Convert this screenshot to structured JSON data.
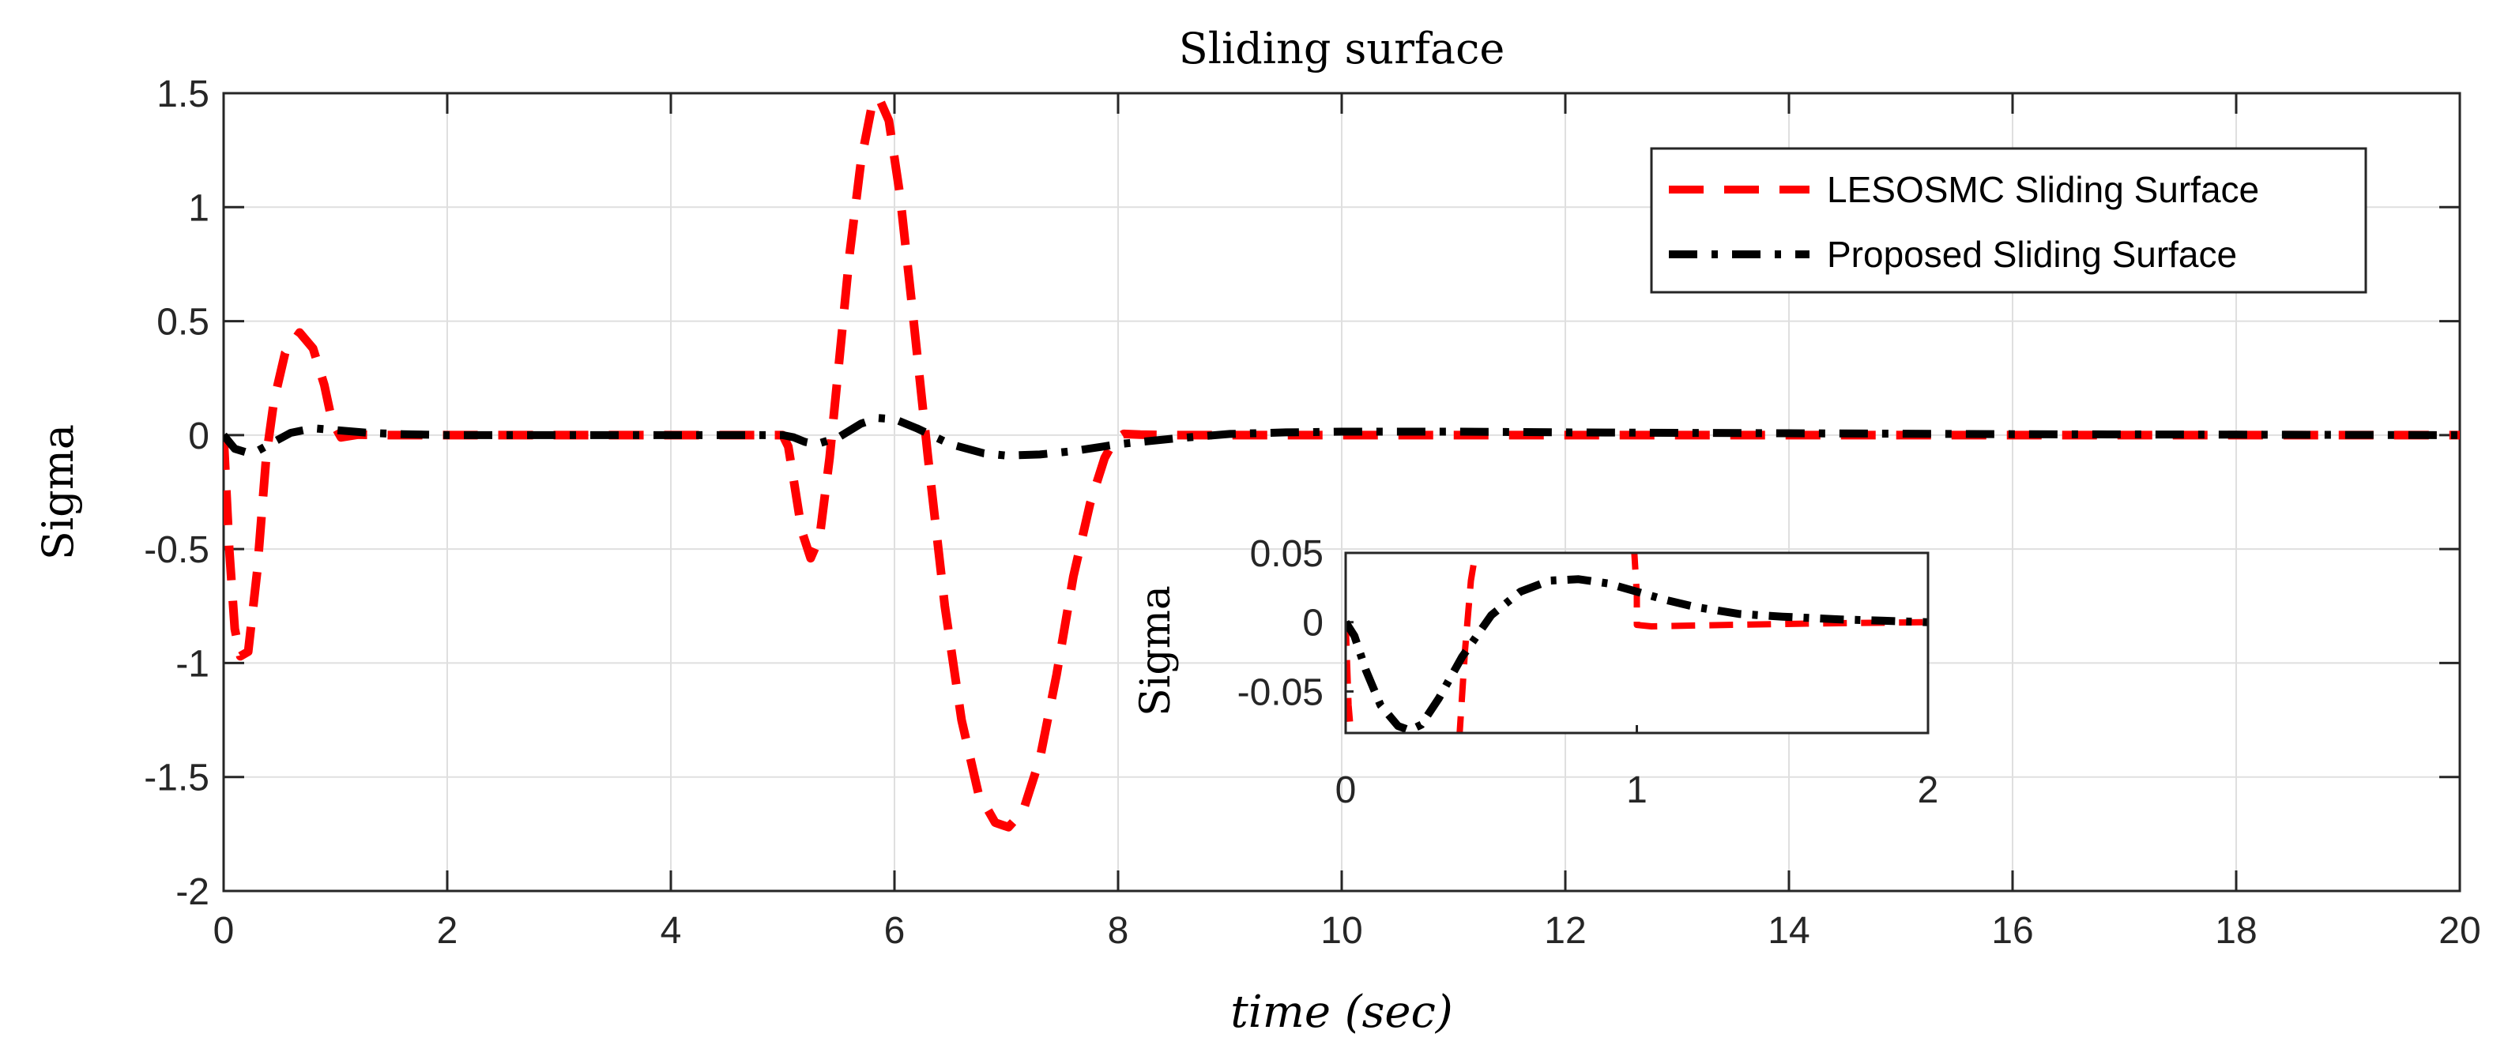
{
  "chart_data": [
    {
      "id": "main",
      "type": "line",
      "title": "Sliding surface",
      "xlabel": "time (sec)",
      "ylabel": "Sigma",
      "xlim": [
        0,
        20
      ],
      "ylim": [
        -2,
        1.5
      ],
      "xticks": [
        0,
        2,
        4,
        6,
        8,
        10,
        12,
        14,
        16,
        18,
        20
      ],
      "xtick_labels": [
        "0",
        "2",
        "4",
        "6",
        "8",
        "10",
        "12",
        "14",
        "16",
        "18",
        "20"
      ],
      "yticks": [
        -2,
        -1.5,
        -1,
        -0.5,
        0,
        0.5,
        1,
        1.5
      ],
      "ytick_labels": [
        "-2",
        "-1.5",
        "-1",
        "-0.5",
        "0",
        "0.5",
        "1",
        "1.5"
      ],
      "grid": true,
      "legend_position": "top-right",
      "series": [
        {
          "name": "LESOSMC Sliding Surface",
          "color": "#ff0000",
          "style": "dashed",
          "x": [
            0,
            0.05,
            0.1,
            0.15,
            0.22,
            0.3,
            0.38,
            0.45,
            0.55,
            0.68,
            0.8,
            0.9,
            0.97,
            1.05,
            1.2,
            1.5,
            2,
            3,
            4,
            5,
            5.05,
            5.1,
            5.17,
            5.25,
            5.33,
            5.42,
            5.5,
            5.6,
            5.7,
            5.8,
            5.86,
            5.95,
            6.05,
            6.15,
            6.3,
            6.45,
            6.6,
            6.75,
            6.9,
            7.02,
            7.15,
            7.3,
            7.45,
            7.6,
            7.75,
            7.88,
            7.97,
            8.05,
            8.2,
            8.5,
            9,
            10,
            12,
            14,
            16,
            18,
            20
          ],
          "y": [
            0,
            -0.5,
            -0.85,
            -0.97,
            -0.95,
            -0.6,
            -0.1,
            0.15,
            0.36,
            0.45,
            0.38,
            0.22,
            0.06,
            -0.01,
            0.002,
            0,
            0,
            0,
            0,
            0,
            -0.05,
            -0.2,
            -0.42,
            -0.54,
            -0.45,
            -0.1,
            0.3,
            0.8,
            1.2,
            1.45,
            1.48,
            1.38,
            1.05,
            0.6,
            -0.1,
            -0.75,
            -1.25,
            -1.57,
            -1.7,
            -1.72,
            -1.65,
            -1.42,
            -1.05,
            -0.62,
            -0.3,
            -0.1,
            -0.02,
            0.005,
            0.002,
            0,
            0,
            0,
            0,
            0,
            0,
            0,
            0
          ]
        },
        {
          "name": "Proposed Sliding Surface",
          "color": "#000000",
          "style": "dashdot",
          "x": [
            0,
            0.1,
            0.22,
            0.3,
            0.45,
            0.6,
            0.8,
            1,
            1.3,
            1.6,
            2,
            3,
            4,
            5,
            5.1,
            5.2,
            5.3,
            5.5,
            5.7,
            5.85,
            6,
            6.2,
            6.5,
            6.8,
            7,
            7.3,
            7.6,
            8,
            8.5,
            9,
            9.5,
            10,
            11,
            12,
            13,
            14,
            16,
            18,
            20
          ],
          "y": [
            0,
            -0.06,
            -0.078,
            -0.07,
            -0.03,
            0.01,
            0.03,
            0.022,
            0.01,
            0.004,
            0,
            0,
            0,
            0,
            -0.01,
            -0.03,
            -0.04,
            -0.01,
            0.05,
            0.075,
            0.07,
            0.03,
            -0.04,
            -0.08,
            -0.09,
            -0.085,
            -0.07,
            -0.04,
            -0.015,
            0.005,
            0.012,
            0.015,
            0.015,
            0.012,
            0.01,
            0.008,
            0.004,
            0.002,
            0
          ]
        }
      ]
    },
    {
      "id": "inset",
      "type": "line",
      "title": "",
      "xlabel": "",
      "ylabel": "Sigma",
      "xlim": [
        0,
        2
      ],
      "ylim": [
        -0.08,
        0.05
      ],
      "xticks": [
        0,
        1,
        2
      ],
      "xtick_labels": [
        "0",
        "1",
        "2"
      ],
      "yticks": [
        -0.05,
        0,
        0.05
      ],
      "ytick_labels": [
        "-0.05",
        "0",
        "0.05"
      ],
      "grid": false,
      "series": [
        {
          "name": "LESOSMC Sliding Surface",
          "color": "#ff0000",
          "style": "dashed",
          "segments": [
            {
              "x": [
                0,
                0.005,
                0.01,
                0.02
              ],
              "y": [
                0,
                -0.03,
                -0.06,
                -0.085
              ]
            },
            {
              "x": [
                0.39,
                0.41,
                0.43,
                0.45
              ],
              "y": [
                -0.085,
                -0.02,
                0.03,
                0.055
              ]
            },
            {
              "x": [
                0.99,
                1.0,
                1.0,
                1.05,
                1.3,
                1.6,
                2.0
              ],
              "y": [
                0.055,
                0.02,
                -0.002,
                -0.003,
                -0.002,
                -0.001,
                0
              ]
            }
          ]
        },
        {
          "name": "Proposed Sliding Surface",
          "color": "#000000",
          "style": "dashdot",
          "segments": [
            {
              "x": [
                0,
                0.03,
                0.07,
                0.12,
                0.18,
                0.22,
                0.26,
                0.32,
                0.4,
                0.5,
                0.6,
                0.7,
                0.8,
                0.9,
                1.0,
                1.1,
                1.2,
                1.35,
                1.5,
                1.7,
                1.85,
                2.0
              ],
              "y": [
                0,
                -0.01,
                -0.035,
                -0.06,
                -0.075,
                -0.078,
                -0.074,
                -0.055,
                -0.025,
                0.005,
                0.022,
                0.03,
                0.031,
                0.028,
                0.022,
                0.016,
                0.011,
                0.006,
                0.004,
                0.002,
                0.001,
                0
              ]
            }
          ]
        }
      ]
    }
  ]
}
